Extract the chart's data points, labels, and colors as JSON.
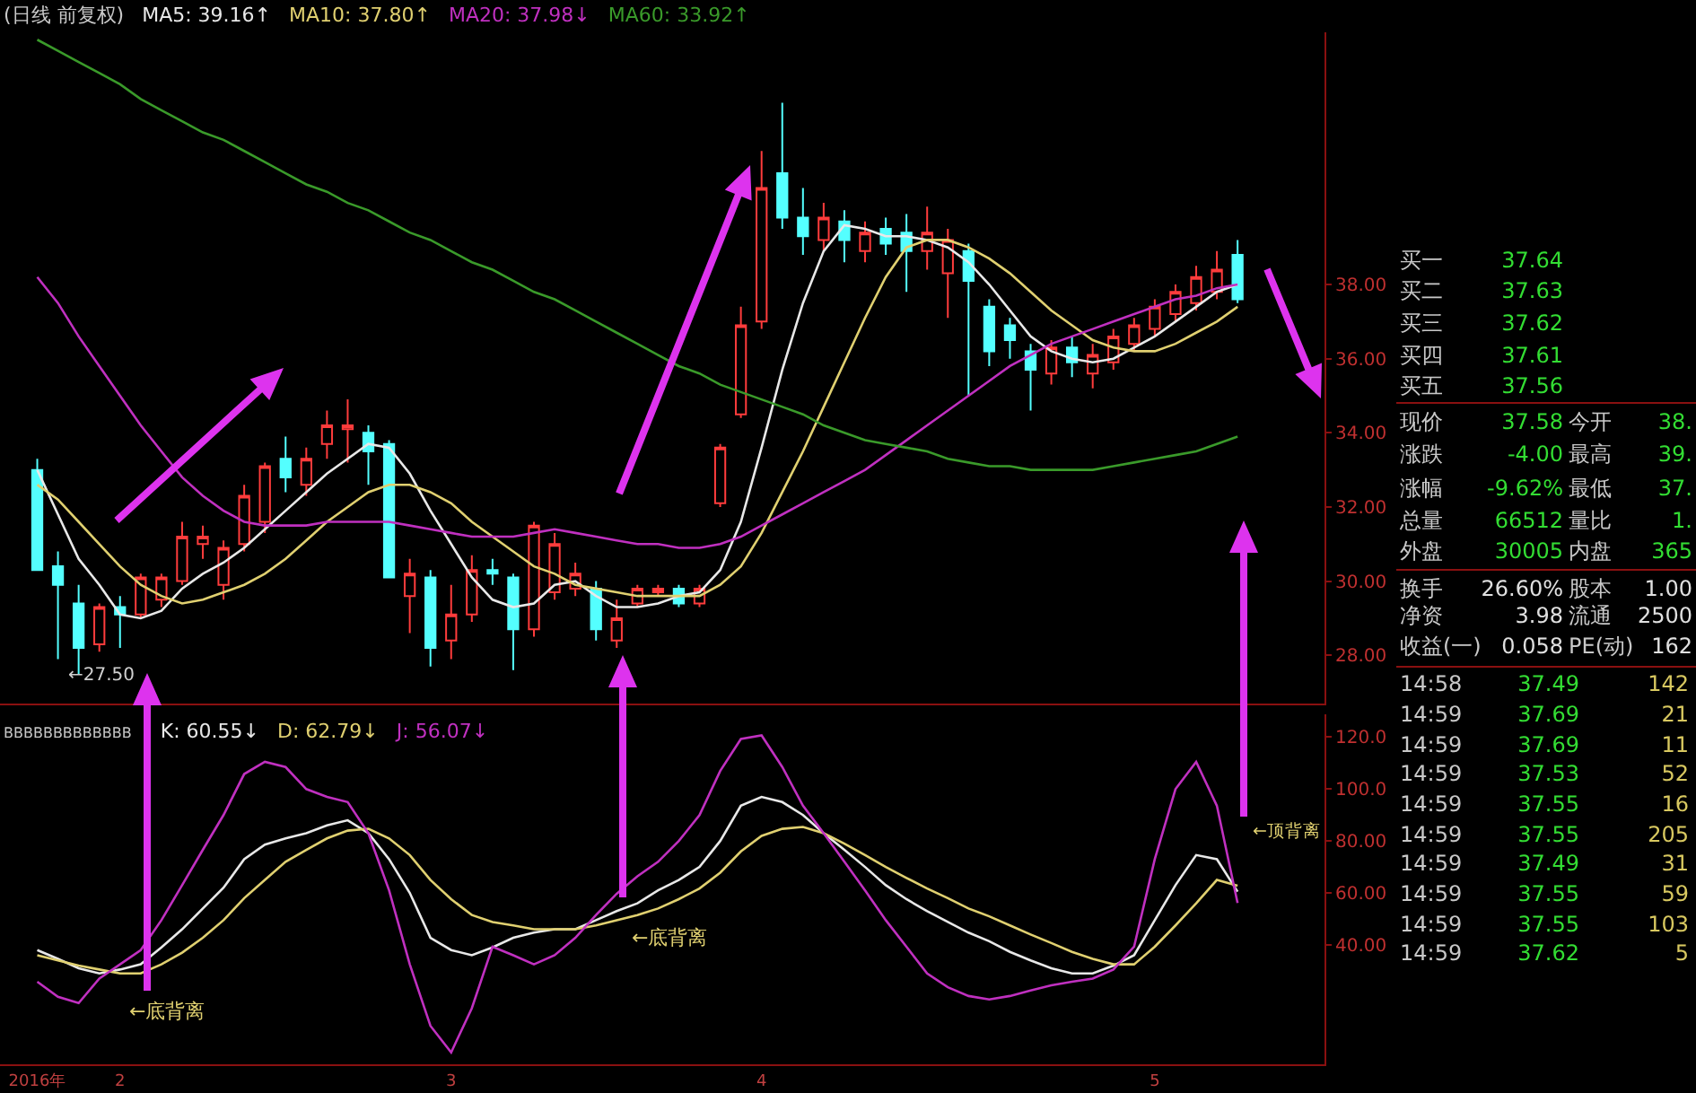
{
  "chart_data": [
    {
      "type": "candlestick",
      "title": "(日线 前复权)",
      "legend": "top left",
      "tick_labels": "y",
      "ylim": [
        26.7,
        44.8
      ],
      "yticks": [
        {
          "value": 28,
          "label": "28.00"
        },
        {
          "value": 30,
          "label": "30.00"
        },
        {
          "value": 32,
          "label": "32.00"
        },
        {
          "value": 34,
          "label": "34.00"
        },
        {
          "value": 36,
          "label": "36.00"
        },
        {
          "value": 38,
          "label": "38.00"
        }
      ],
      "categories": [
        null,
        null,
        null,
        null,
        null,
        null,
        null,
        null,
        null,
        null,
        null,
        null,
        null,
        null,
        null,
        null,
        null,
        null,
        null,
        null,
        null,
        null,
        null,
        null,
        null,
        null,
        null,
        null,
        null,
        null,
        null,
        null,
        null,
        null,
        null,
        null,
        null,
        null,
        null,
        null,
        null,
        null,
        null,
        null,
        null,
        null,
        null,
        null,
        null,
        null,
        null,
        null,
        null,
        null,
        null,
        null,
        null,
        null,
        null
      ],
      "ohlc": [
        [
          33.0,
          33.3,
          30.3,
          30.3
        ],
        [
          30.4,
          30.8,
          27.9,
          29.9
        ],
        [
          29.4,
          29.9,
          27.5,
          28.2
        ],
        [
          28.3,
          29.4,
          28.1,
          29.3
        ],
        [
          29.3,
          29.6,
          28.2,
          29.1
        ],
        [
          29.1,
          30.2,
          29.0,
          30.1
        ],
        [
          29.5,
          30.2,
          29.3,
          30.1
        ],
        [
          30.0,
          31.6,
          29.9,
          31.2
        ],
        [
          31.0,
          31.5,
          30.6,
          31.2
        ],
        [
          29.9,
          31.1,
          29.5,
          30.9
        ],
        [
          31.0,
          32.6,
          30.8,
          32.3
        ],
        [
          31.6,
          33.2,
          31.3,
          33.1
        ],
        [
          33.3,
          33.9,
          32.4,
          32.8
        ],
        [
          32.6,
          33.6,
          32.3,
          33.3
        ],
        [
          33.7,
          34.6,
          33.3,
          34.2
        ],
        [
          34.1,
          34.9,
          33.2,
          34.2
        ],
        [
          34.0,
          34.2,
          32.6,
          33.5
        ],
        [
          33.7,
          33.8,
          30.1,
          30.1
        ],
        [
          29.6,
          30.6,
          28.6,
          30.2
        ],
        [
          30.1,
          30.3,
          27.7,
          28.2
        ],
        [
          28.4,
          29.9,
          27.9,
          29.1
        ],
        [
          29.1,
          30.7,
          28.9,
          30.3
        ],
        [
          30.3,
          30.6,
          29.9,
          30.2
        ],
        [
          30.1,
          30.2,
          27.6,
          28.7
        ],
        [
          28.7,
          31.6,
          28.5,
          31.5
        ],
        [
          29.7,
          31.3,
          29.5,
          31.0
        ],
        [
          29.8,
          30.5,
          29.6,
          30.2
        ],
        [
          29.8,
          30.0,
          28.4,
          28.7
        ],
        [
          28.4,
          29.5,
          28.2,
          29.0
        ],
        [
          29.4,
          29.9,
          29.3,
          29.8
        ],
        [
          29.7,
          29.9,
          29.6,
          29.8
        ],
        [
          29.8,
          29.9,
          29.3,
          29.4
        ],
        [
          29.4,
          29.9,
          29.3,
          29.8
        ],
        [
          32.1,
          33.7,
          32.0,
          33.6
        ],
        [
          34.5,
          37.4,
          34.4,
          36.9
        ],
        [
          37.0,
          41.6,
          36.8,
          40.6
        ],
        [
          41.0,
          42.9,
          39.5,
          39.8
        ],
        [
          39.8,
          40.6,
          38.8,
          39.3
        ],
        [
          39.2,
          40.2,
          38.9,
          39.8
        ],
        [
          39.7,
          40.0,
          38.6,
          39.2
        ],
        [
          38.9,
          39.7,
          38.6,
          39.4
        ],
        [
          39.5,
          39.8,
          38.8,
          39.1
        ],
        [
          39.4,
          39.9,
          37.8,
          38.9
        ],
        [
          38.9,
          40.1,
          38.4,
          39.4
        ],
        [
          38.3,
          39.5,
          37.1,
          39.2
        ],
        [
          38.9,
          39.1,
          35.0,
          38.1
        ],
        [
          37.4,
          37.6,
          35.8,
          36.2
        ],
        [
          36.9,
          37.1,
          36.0,
          36.5
        ],
        [
          36.2,
          36.4,
          34.6,
          35.7
        ],
        [
          35.6,
          36.5,
          35.3,
          36.3
        ],
        [
          36.3,
          36.6,
          35.5,
          35.9
        ],
        [
          35.6,
          36.4,
          35.2,
          36.1
        ],
        [
          35.9,
          36.8,
          35.7,
          36.6
        ],
        [
          36.4,
          37.1,
          36.2,
          36.9
        ],
        [
          36.8,
          37.6,
          36.6,
          37.4
        ],
        [
          37.2,
          38.0,
          37.0,
          37.8
        ],
        [
          37.5,
          38.5,
          37.3,
          38.2
        ],
        [
          37.8,
          38.9,
          37.6,
          38.4
        ],
        [
          38.8,
          39.2,
          37.5,
          37.6
        ]
      ],
      "series": [
        {
          "name": "MA5: 39.16↑",
          "color": "#e8e8e8",
          "type": "line",
          "values": [
            33.0,
            31.8,
            30.6,
            29.9,
            29.1,
            29.0,
            29.2,
            29.8,
            30.2,
            30.5,
            30.9,
            31.4,
            31.9,
            32.4,
            32.9,
            33.3,
            33.7,
            33.6,
            32.9,
            31.9,
            31.0,
            30.1,
            29.5,
            29.3,
            29.4,
            29.9,
            30.0,
            29.6,
            29.3,
            29.3,
            29.4,
            29.6,
            29.7,
            30.3,
            31.6,
            33.6,
            35.7,
            37.5,
            38.9,
            39.6,
            39.5,
            39.3,
            39.3,
            39.2,
            39.0,
            38.6,
            38.0,
            37.3,
            36.6,
            36.2,
            36.0,
            35.9,
            36.0,
            36.3,
            36.6,
            37.0,
            37.4,
            37.8,
            38.0
          ]
        },
        {
          "name": "MA10: 37.80↑",
          "color": "#e0d070",
          "type": "line",
          "values": [
            32.6,
            32.2,
            31.6,
            31.0,
            30.4,
            29.9,
            29.6,
            29.4,
            29.5,
            29.7,
            29.9,
            30.2,
            30.6,
            31.1,
            31.6,
            32.0,
            32.4,
            32.6,
            32.6,
            32.4,
            32.1,
            31.6,
            31.2,
            30.8,
            30.4,
            30.2,
            29.9,
            29.8,
            29.7,
            29.6,
            29.6,
            29.6,
            29.6,
            29.9,
            30.4,
            31.3,
            32.4,
            33.5,
            34.7,
            35.9,
            37.1,
            38.2,
            39.0,
            39.2,
            39.2,
            39.0,
            38.7,
            38.3,
            37.8,
            37.3,
            36.9,
            36.5,
            36.3,
            36.2,
            36.2,
            36.4,
            36.7,
            37.0,
            37.4
          ]
        },
        {
          "name": "MA20: 37.98↓",
          "color": "#c030c0",
          "type": "line",
          "values": [
            38.2,
            37.5,
            36.6,
            35.8,
            35.0,
            34.2,
            33.5,
            32.8,
            32.3,
            31.9,
            31.6,
            31.5,
            31.5,
            31.5,
            31.6,
            31.6,
            31.6,
            31.6,
            31.5,
            31.4,
            31.3,
            31.2,
            31.2,
            31.2,
            31.3,
            31.4,
            31.3,
            31.2,
            31.1,
            31.0,
            31.0,
            30.9,
            30.9,
            31.0,
            31.2,
            31.5,
            31.8,
            32.1,
            32.4,
            32.7,
            33.0,
            33.4,
            33.8,
            34.2,
            34.6,
            35.0,
            35.4,
            35.8,
            36.1,
            36.4,
            36.6,
            36.8,
            37.0,
            37.2,
            37.4,
            37.6,
            37.7,
            37.9,
            38.0
          ]
        },
        {
          "name": "MA60: 33.92↑",
          "color": "#3a9a2a",
          "type": "line",
          "values": [
            44.6,
            44.3,
            44.0,
            43.7,
            43.4,
            43.0,
            42.7,
            42.4,
            42.1,
            41.9,
            41.6,
            41.3,
            41.0,
            40.7,
            40.5,
            40.2,
            40.0,
            39.7,
            39.4,
            39.2,
            38.9,
            38.6,
            38.4,
            38.1,
            37.8,
            37.6,
            37.3,
            37.0,
            36.7,
            36.4,
            36.1,
            35.8,
            35.6,
            35.3,
            35.1,
            34.9,
            34.7,
            34.5,
            34.2,
            34.0,
            33.8,
            33.7,
            33.6,
            33.5,
            33.3,
            33.2,
            33.1,
            33.1,
            33.0,
            33.0,
            33.0,
            33.0,
            33.1,
            33.2,
            33.3,
            33.4,
            33.5,
            33.7,
            33.9
          ]
        }
      ],
      "annotations": [
        "←27.50"
      ]
    },
    {
      "type": "line",
      "title": "BBBBBBBBBBBBB",
      "legend": "top left",
      "ylim": [
        -6,
        128.8
      ],
      "yticks": [
        {
          "value": 40,
          "label": "40.00"
        },
        {
          "value": 60,
          "label": "60.00"
        },
        {
          "value": 80,
          "label": "80.00"
        },
        {
          "value": 100,
          "label": "100.0"
        },
        {
          "value": 120,
          "label": "120.0"
        }
      ],
      "categories": [
        "2016年",
        null,
        null,
        null,
        "2",
        null,
        null,
        null,
        null,
        null,
        null,
        null,
        null,
        null,
        null,
        null,
        null,
        null,
        null,
        null,
        "3",
        null,
        null,
        null,
        null,
        null,
        null,
        null,
        null,
        null,
        null,
        null,
        null,
        null,
        null,
        "4",
        null,
        null,
        null,
        null,
        null,
        null,
        null,
        null,
        null,
        null,
        null,
        null,
        null,
        null,
        null,
        null,
        null,
        null,
        "5",
        null,
        null,
        null,
        null
      ],
      "series": [
        {
          "name": "K: 60.55↓",
          "color": "#e8e8e8",
          "values": [
            38,
            34.6,
            31,
            29,
            30.5,
            32.5,
            39,
            46,
            54,
            62,
            73,
            78.6,
            81,
            83,
            86,
            88,
            83,
            73,
            60,
            42.7,
            38,
            36,
            39,
            42.7,
            44.7,
            46,
            46,
            49.5,
            53,
            56,
            61,
            65,
            70,
            80,
            93.6,
            97,
            95,
            90,
            83,
            76.6,
            70,
            63,
            57.6,
            53,
            48.8,
            44.7,
            41.4,
            37.3,
            34,
            31,
            29,
            29,
            32,
            36,
            49.5,
            63,
            74.6,
            73,
            60.5
          ]
        },
        {
          "name": "D: 62.79↓",
          "color": "#e0d070",
          "values": [
            36,
            34,
            32,
            30.5,
            29,
            29,
            32.5,
            37,
            42.7,
            49.5,
            58,
            65,
            72,
            76.6,
            81,
            84,
            84.7,
            81,
            74.6,
            65,
            57.6,
            51.5,
            48.8,
            47.5,
            46,
            46,
            46,
            47.5,
            49.5,
            51.5,
            54,
            57.6,
            61.7,
            67.8,
            76,
            82,
            84.7,
            85.4,
            83,
            79,
            74.6,
            70,
            65.8,
            61.7,
            58,
            54,
            51,
            47.5,
            44,
            40.7,
            37.3,
            34.6,
            32.5,
            32.5,
            39.3,
            47.5,
            56,
            65,
            62.8
          ]
        },
        {
          "name": "J: 56.07↓",
          "color": "#c030c0",
          "values": [
            25.8,
            20,
            17.6,
            27,
            32.5,
            38,
            49.5,
            63,
            76.6,
            90,
            105.8,
            110.5,
            108.5,
            100,
            97,
            95,
            83,
            61,
            32.5,
            8.8,
            -1.4,
            15.6,
            39.3,
            36,
            32.5,
            36,
            42.7,
            51.5,
            59.7,
            66.4,
            72,
            80,
            90,
            107,
            119.3,
            120.7,
            108.5,
            93.6,
            83,
            72,
            61,
            49.5,
            39.3,
            29,
            23.7,
            20.3,
            19,
            20.3,
            22.4,
            24.4,
            25.8,
            27,
            30.5,
            39.3,
            73,
            100,
            110.5,
            93.6,
            56.1
          ]
        }
      ],
      "annotations": [
        "←底背离",
        "←底背离",
        "←顶背离"
      ]
    },
    {
      "type": "other",
      "annotations": [
        "买一 37.64",
        "买二 37.63",
        "买三 37.62",
        "买四 37.61",
        "买五 37.56",
        "现价 37.58 今开 38.",
        "涨跌 -4.00 最高 39.",
        "涨幅 -9.62% 最低 37.",
        "总量 66512 量比 1.",
        "外盘 30005 内盘 365",
        "换手 26.60% 股本 1.00",
        "净资 3.98 流通 2500",
        "收益(一) 0.058 PE(动) 162",
        "14:58 37.49 142",
        "14:59 37.69 21",
        "14:59 37.69 11",
        "14:59 37.53 52",
        "14:59 37.55 16",
        "14:59 37.55 205",
        "14:59 37.49 31",
        "14:59 37.55 59",
        "14:59 37.55 103",
        "14:59 37.62 5"
      ]
    }
  ]
}
